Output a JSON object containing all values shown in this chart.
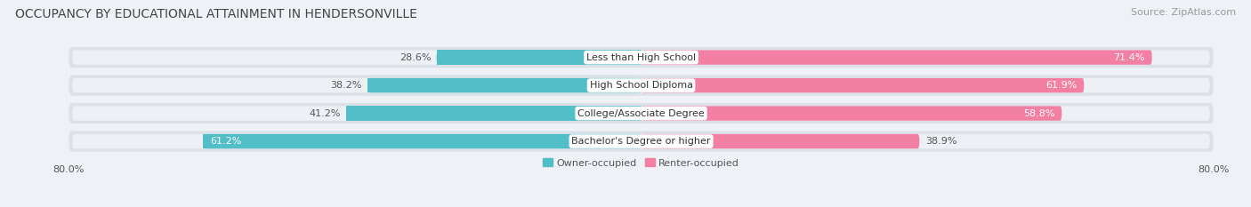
{
  "title": "OCCUPANCY BY EDUCATIONAL ATTAINMENT IN HENDERSONVILLE",
  "source": "Source: ZipAtlas.com",
  "categories": [
    "Less than High School",
    "High School Diploma",
    "College/Associate Degree",
    "Bachelor's Degree or higher"
  ],
  "owner_values": [
    28.6,
    38.2,
    41.2,
    61.2
  ],
  "renter_values": [
    71.4,
    61.9,
    58.8,
    38.9
  ],
  "owner_color": "#52bec7",
  "renter_color": "#f47fa4",
  "background_color": "#eef2f7",
  "bar_bg_color": "#e2e6ec",
  "bar_row_color": "#e8ecf1",
  "xlim": 80.0,
  "title_fontsize": 10,
  "source_fontsize": 8,
  "label_fontsize": 8,
  "value_fontsize": 8,
  "bar_height": 0.52,
  "legend_owner": "Owner-occupied",
  "legend_renter": "Renter-occupied"
}
